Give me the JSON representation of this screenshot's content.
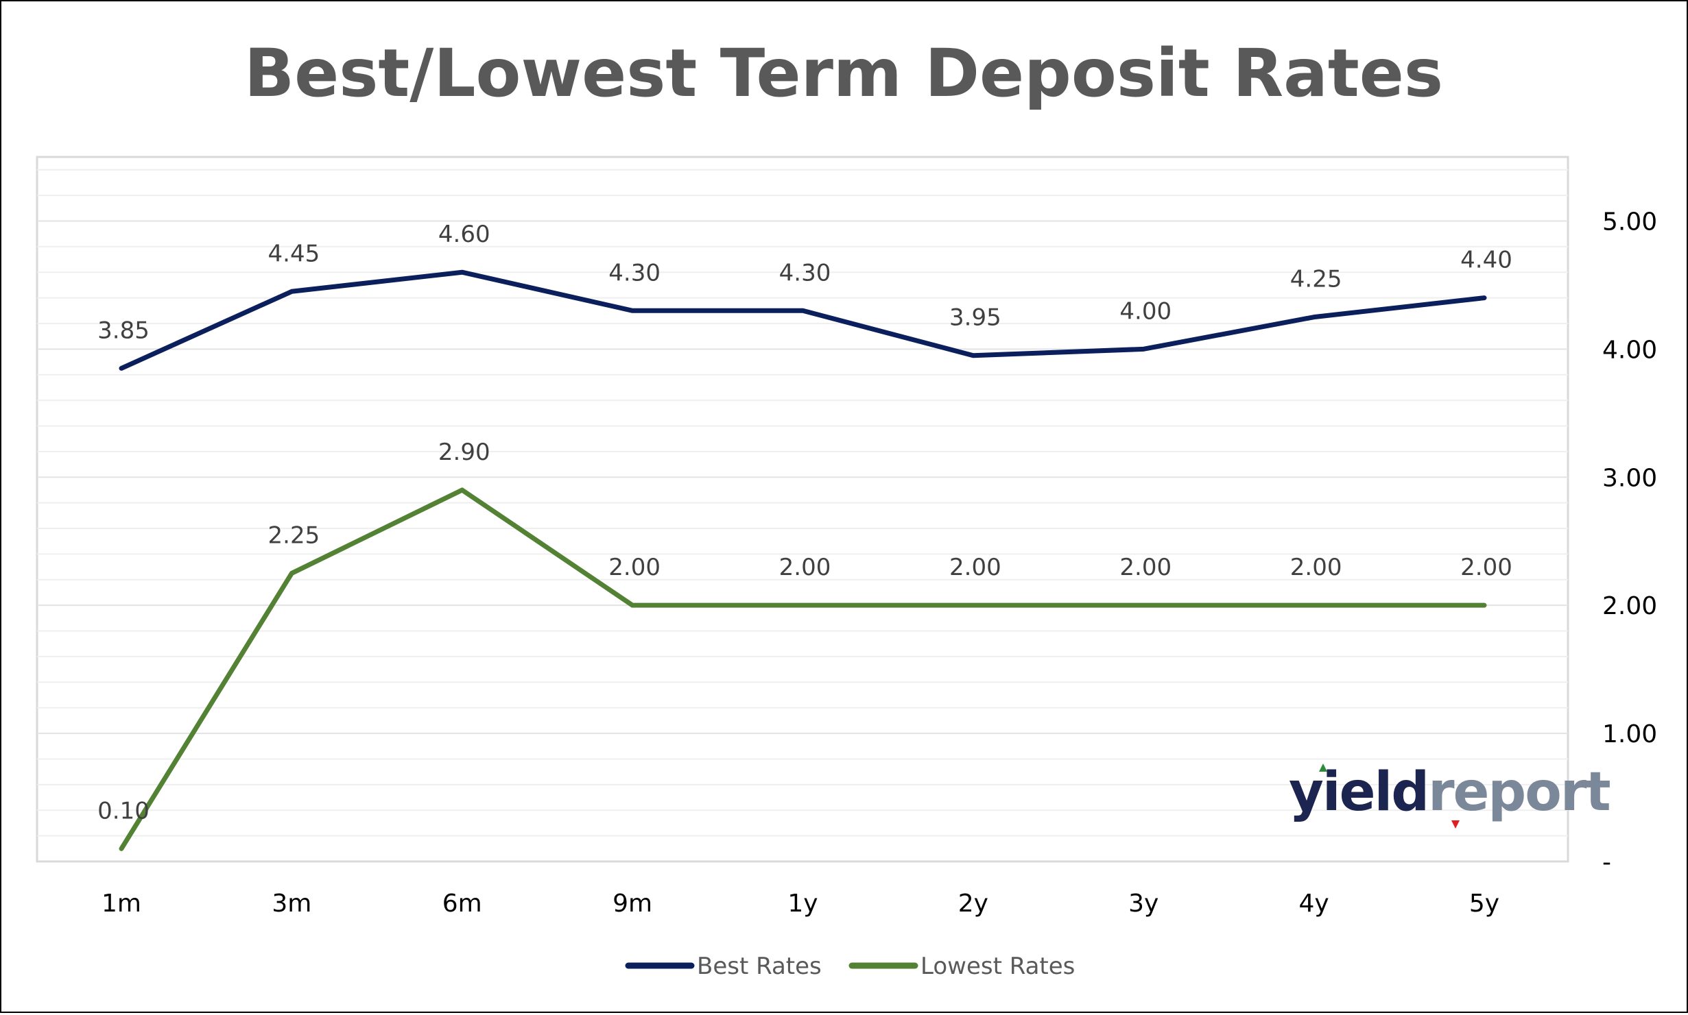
{
  "chart_data": {
    "type": "line",
    "title": "Best/Lowest Term Deposit Rates",
    "categories": [
      "1m",
      "3m",
      "6m",
      "9m",
      "1y",
      "2y",
      "3y",
      "4y",
      "5y"
    ],
    "series": [
      {
        "name": "Best Rates",
        "color": "#0a1f5c",
        "values": [
          3.85,
          4.45,
          4.6,
          4.3,
          4.3,
          3.95,
          4.0,
          4.25,
          4.4
        ],
        "labels": [
          "3.85",
          "4.45",
          "4.60",
          "4.30",
          "4.30",
          "3.95",
          "4.00",
          "4.25",
          "4.40"
        ]
      },
      {
        "name": "Lowest Rates",
        "color": "#548235",
        "values": [
          0.1,
          2.25,
          2.9,
          2.0,
          2.0,
          2.0,
          2.0,
          2.0,
          2.0
        ],
        "labels": [
          "0.10",
          "2.25",
          "2.90",
          "2.00",
          "2.00",
          "2.00",
          "2.00",
          "2.00",
          "2.00"
        ]
      }
    ],
    "y_axis": {
      "position": "right",
      "ylim": [
        0,
        5.5
      ],
      "ticks": [
        0,
        1,
        2,
        3,
        4,
        5
      ],
      "tick_labels": [
        "-",
        "1.00",
        "2.00",
        "3.00",
        "4.00",
        "5.00"
      ]
    },
    "grid": true,
    "legend": "bottom"
  },
  "logo": {
    "part1": "yield",
    "part2": "report",
    "color1": "#1b2550",
    "color2": "#7a8899",
    "up_arrow_color": "#2e8b3a",
    "down_arrow_color": "#e02020"
  }
}
